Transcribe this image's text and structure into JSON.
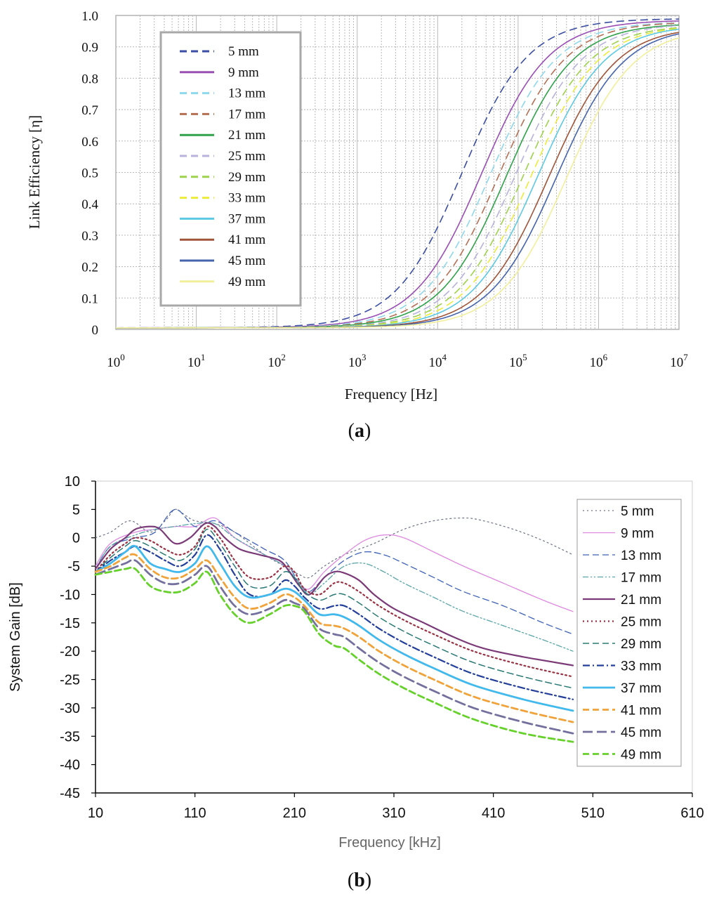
{
  "chart_data": [
    {
      "type": "line",
      "panel_label": "a",
      "title": "",
      "xlabel": "Frequency [Hz]",
      "ylabel": "Link Efficiency [η]",
      "xscale": "log",
      "xlim": [
        1,
        10000000
      ],
      "ylim": [
        0,
        1
      ],
      "grid": true,
      "legend_position": "top-left",
      "x_ticks": [
        {
          "base": "10",
          "exp": "0"
        },
        {
          "base": "10",
          "exp": "1"
        },
        {
          "base": "10",
          "exp": "2"
        },
        {
          "base": "10",
          "exp": "3"
        },
        {
          "base": "10",
          "exp": "4"
        },
        {
          "base": "10",
          "exp": "5"
        },
        {
          "base": "10",
          "exp": "6"
        },
        {
          "base": "10",
          "exp": "7"
        }
      ],
      "y_ticks": [
        "0",
        "0.1",
        "0.2",
        "0.3",
        "0.4",
        "0.5",
        "0.6",
        "0.7",
        "0.8",
        "0.9",
        "1.0"
      ],
      "series": [
        {
          "name": "5 mm",
          "color": "#3b4ea3",
          "dash": "dashed",
          "f50": 20000,
          "slope": 1.05,
          "max": 0.99
        },
        {
          "name": "9 mm",
          "color": "#9a4fb5",
          "dash": "solid",
          "f50": 35000,
          "slope": 1.05,
          "max": 0.985
        },
        {
          "name": "13 mm",
          "color": "#8ed8ec",
          "dash": "dashed",
          "f50": 45000,
          "slope": 1.05,
          "max": 0.98
        },
        {
          "name": "17 mm",
          "color": "#b56f54",
          "dash": "dashed",
          "f50": 58000,
          "slope": 1.05,
          "max": 0.98
        },
        {
          "name": "21 mm",
          "color": "#2fa24a",
          "dash": "solid",
          "f50": 72000,
          "slope": 1.05,
          "max": 0.975
        },
        {
          "name": "25 mm",
          "color": "#b9b2dd",
          "dash": "dashed",
          "f50": 92000,
          "slope": 1.05,
          "max": 0.975
        },
        {
          "name": "29 mm",
          "color": "#9ed24a",
          "dash": "dashed",
          "f50": 115000,
          "slope": 1.05,
          "max": 0.97
        },
        {
          "name": "33 mm",
          "color": "#ecec3c",
          "dash": "dashed",
          "f50": 145000,
          "slope": 1.05,
          "max": 0.97
        },
        {
          "name": "37 mm",
          "color": "#5cc9e2",
          "dash": "solid",
          "f50": 175000,
          "slope": 1.05,
          "max": 0.97
        },
        {
          "name": "41 mm",
          "color": "#a0553a",
          "dash": "solid",
          "f50": 240000,
          "slope": 1.05,
          "max": 0.965
        },
        {
          "name": "45 mm",
          "color": "#4664ad",
          "dash": "solid",
          "f50": 300000,
          "slope": 1.05,
          "max": 0.965
        },
        {
          "name": "49 mm",
          "color": "#f1ef9a",
          "dash": "solid",
          "f50": 400000,
          "slope": 1.05,
          "max": 0.96
        }
      ]
    },
    {
      "type": "line",
      "panel_label": "b",
      "title": "",
      "xlabel": "Frequency [kHz]",
      "ylabel": "System Gain [dB]",
      "xlim": [
        10,
        610
      ],
      "ylim": [
        -45,
        10
      ],
      "grid": false,
      "legend_position": "right",
      "x_ticks": [
        "10",
        "110",
        "210",
        "310",
        "410",
        "510",
        "610"
      ],
      "y_ticks": [
        "10",
        "5",
        "0",
        "-5",
        "-10",
        "-15",
        "-20",
        "-25",
        "-30",
        "-35",
        "-40",
        "-45"
      ],
      "series": [
        {
          "name": "5 mm",
          "color": "#6d7488",
          "dash": "dotted",
          "width": 1.2,
          "x": [
            10,
            25,
            45,
            65,
            80,
            90,
            100,
            110,
            130,
            150,
            180,
            200,
            215,
            225,
            240,
            260,
            290,
            320,
            350,
            380,
            400,
            430,
            460,
            490
          ],
          "y": [
            0,
            1,
            3,
            1,
            3,
            5,
            4,
            3,
            2.5,
            1,
            -3,
            -5,
            -6.5,
            -7,
            -5,
            -3,
            -1,
            1.5,
            3,
            3.5,
            3,
            1.5,
            -0.5,
            -3
          ]
        },
        {
          "name": "9 mm",
          "color": "#de8ae0",
          "dash": "solid",
          "width": 1.3,
          "x": [
            10,
            25,
            50,
            70,
            90,
            110,
            130,
            150,
            180,
            200,
            215,
            225,
            240,
            260,
            280,
            300,
            320,
            350,
            380,
            420,
            460,
            490
          ],
          "y": [
            -5,
            -1,
            1,
            1.5,
            2,
            2,
            3.5,
            0,
            -3,
            -5,
            -8,
            -9,
            -6,
            -3,
            -0.5,
            0.5,
            0,
            -2.5,
            -5,
            -8,
            -11,
            -13
          ]
        },
        {
          "name": "13 mm",
          "color": "#3f63b8",
          "dash": "dashed",
          "width": 1.3,
          "x": [
            10,
            25,
            50,
            70,
            90,
            110,
            130,
            150,
            180,
            200,
            215,
            225,
            240,
            260,
            280,
            300,
            320,
            350,
            380,
            420,
            460,
            490
          ],
          "y": [
            -5.5,
            -1.5,
            0,
            1,
            5,
            2,
            3,
            1,
            -2,
            -4,
            -8,
            -9.5,
            -7,
            -4,
            -2.5,
            -3,
            -4.5,
            -7,
            -9.5,
            -12,
            -15,
            -17
          ]
        },
        {
          "name": "17 mm",
          "color": "#5aa5a8",
          "dash": "dashdotdot",
          "width": 1.3,
          "x": [
            10,
            25,
            50,
            70,
            90,
            110,
            130,
            150,
            180,
            200,
            215,
            225,
            240,
            260,
            280,
            300,
            320,
            350,
            380,
            420,
            460,
            490
          ],
          "y": [
            -5.5,
            -1.5,
            0.5,
            1.5,
            2,
            2.5,
            2.5,
            0,
            -3,
            -5,
            -8,
            -10,
            -8,
            -5,
            -4.5,
            -6,
            -8,
            -10.5,
            -13,
            -15.5,
            -18,
            -20
          ]
        },
        {
          "name": "21 mm",
          "color": "#7b3b78",
          "dash": "solid",
          "width": 2.2,
          "x": [
            10,
            25,
            40,
            50,
            65,
            75,
            90,
            105,
            120,
            130,
            140,
            155,
            175,
            195,
            205,
            215,
            225,
            240,
            250,
            260,
            275,
            290,
            310,
            340,
            370,
            400,
            440,
            490
          ],
          "y": [
            -5.5,
            -2,
            0,
            1.5,
            2,
            1.5,
            -1,
            0,
            2.5,
            2,
            0,
            -2,
            -3,
            -4,
            -6,
            -8.5,
            -10,
            -7,
            -6,
            -6.2,
            -7.5,
            -10,
            -12.5,
            -15,
            -17.5,
            -19.5,
            -21,
            -22.5
          ]
        },
        {
          "name": "25 mm",
          "color": "#993344",
          "dash": "dotted",
          "width": 2.2,
          "x": [
            10,
            25,
            40,
            50,
            65,
            80,
            95,
            110,
            122,
            135,
            150,
            165,
            185,
            200,
            210,
            220,
            235,
            250,
            260,
            275,
            295,
            320,
            350,
            390,
            440,
            490
          ],
          "y": [
            -6,
            -3,
            -1,
            0,
            -0.5,
            -2,
            -3,
            -1.5,
            2,
            0,
            -4,
            -7,
            -7,
            -5,
            -6,
            -9,
            -10,
            -8,
            -8,
            -9.5,
            -12,
            -14.5,
            -17,
            -20,
            -22.5,
            -24.5
          ]
        },
        {
          "name": "29 mm",
          "color": "#2b7a76",
          "dash": "dashed",
          "width": 1.5,
          "x": [
            10,
            25,
            40,
            50,
            65,
            80,
            95,
            110,
            122,
            135,
            150,
            165,
            185,
            200,
            210,
            220,
            235,
            250,
            260,
            275,
            295,
            320,
            350,
            390,
            440,
            490
          ],
          "y": [
            -6,
            -3.5,
            -1.5,
            -0.5,
            -1.5,
            -3,
            -4,
            -2,
            1.5,
            -1,
            -5,
            -8.5,
            -8.5,
            -6,
            -7,
            -9.5,
            -11,
            -10,
            -10,
            -11.5,
            -14,
            -16.5,
            -19,
            -22,
            -24.5,
            -26.5
          ]
        },
        {
          "name": "33 mm",
          "color": "#243f9a",
          "dash": "dashdot",
          "width": 2.2,
          "x": [
            10,
            25,
            40,
            50,
            65,
            80,
            95,
            110,
            122,
            135,
            150,
            165,
            185,
            200,
            210,
            220,
            235,
            250,
            260,
            275,
            295,
            320,
            350,
            390,
            440,
            490
          ],
          "y": [
            -6,
            -4,
            -2.5,
            -1.5,
            -2.5,
            -4,
            -5,
            -3,
            0.5,
            -2,
            -6.5,
            -10,
            -10,
            -7.5,
            -8.5,
            -10.5,
            -12.5,
            -12,
            -12,
            -13.5,
            -16,
            -18.5,
            -21,
            -24,
            -26.5,
            -28.5
          ]
        },
        {
          "name": "37 mm",
          "color": "#41b9ec",
          "dash": "solid",
          "width": 2.8,
          "x": [
            10,
            25,
            40,
            50,
            65,
            80,
            95,
            110,
            122,
            135,
            150,
            165,
            185,
            200,
            210,
            220,
            235,
            250,
            260,
            275,
            295,
            320,
            350,
            390,
            440,
            490
          ],
          "y": [
            -6,
            -4.5,
            -2.5,
            -1.5,
            -4.5,
            -5.5,
            -6,
            -4.5,
            -1.5,
            -4.5,
            -8.5,
            -10.5,
            -10,
            -9,
            -9.5,
            -11,
            -13.5,
            -13.5,
            -14,
            -15.5,
            -18,
            -20.5,
            -23,
            -26,
            -28.5,
            -30.5
          ]
        },
        {
          "name": "41 mm",
          "color": "#f0a33a",
          "dash": "dashed",
          "width": 2.8,
          "x": [
            10,
            25,
            40,
            50,
            65,
            80,
            95,
            110,
            122,
            135,
            150,
            165,
            185,
            200,
            210,
            220,
            235,
            250,
            260,
            275,
            295,
            320,
            350,
            390,
            440,
            490
          ],
          "y": [
            -6,
            -5,
            -3.5,
            -3,
            -5.5,
            -7,
            -7,
            -5.5,
            -4,
            -7,
            -10.5,
            -12.5,
            -11.5,
            -10,
            -10.5,
            -12,
            -15,
            -15.5,
            -16,
            -17.5,
            -20,
            -22.5,
            -25,
            -28,
            -30.5,
            -32.5
          ]
        },
        {
          "name": "45 mm",
          "color": "#74709e",
          "dash": "longdash",
          "width": 2.8,
          "x": [
            10,
            25,
            40,
            50,
            65,
            80,
            95,
            110,
            122,
            135,
            150,
            165,
            185,
            200,
            210,
            220,
            235,
            250,
            260,
            275,
            295,
            320,
            350,
            390,
            440,
            490
          ],
          "y": [
            -6.5,
            -5.5,
            -4.5,
            -4,
            -6.5,
            -8,
            -8,
            -6.5,
            -5,
            -8.5,
            -12,
            -13.5,
            -12.5,
            -11,
            -11.5,
            -12.5,
            -16,
            -17,
            -17.5,
            -19.5,
            -22,
            -24.5,
            -27,
            -30,
            -32.5,
            -34.5
          ]
        },
        {
          "name": "49 mm",
          "color": "#66d12b",
          "dash": "dashed",
          "width": 2.8,
          "x": [
            10,
            25,
            40,
            50,
            65,
            80,
            95,
            110,
            122,
            135,
            150,
            165,
            185,
            200,
            210,
            220,
            235,
            250,
            260,
            275,
            295,
            320,
            350,
            390,
            440,
            490
          ],
          "y": [
            -6.5,
            -6,
            -5.5,
            -5.5,
            -8.5,
            -9.5,
            -9.5,
            -8,
            -6,
            -10,
            -13.5,
            -15,
            -13.5,
            -12,
            -12,
            -13,
            -17,
            -19,
            -19.5,
            -21.5,
            -24,
            -26.5,
            -29,
            -32,
            -34.5,
            -36
          ]
        }
      ]
    }
  ]
}
